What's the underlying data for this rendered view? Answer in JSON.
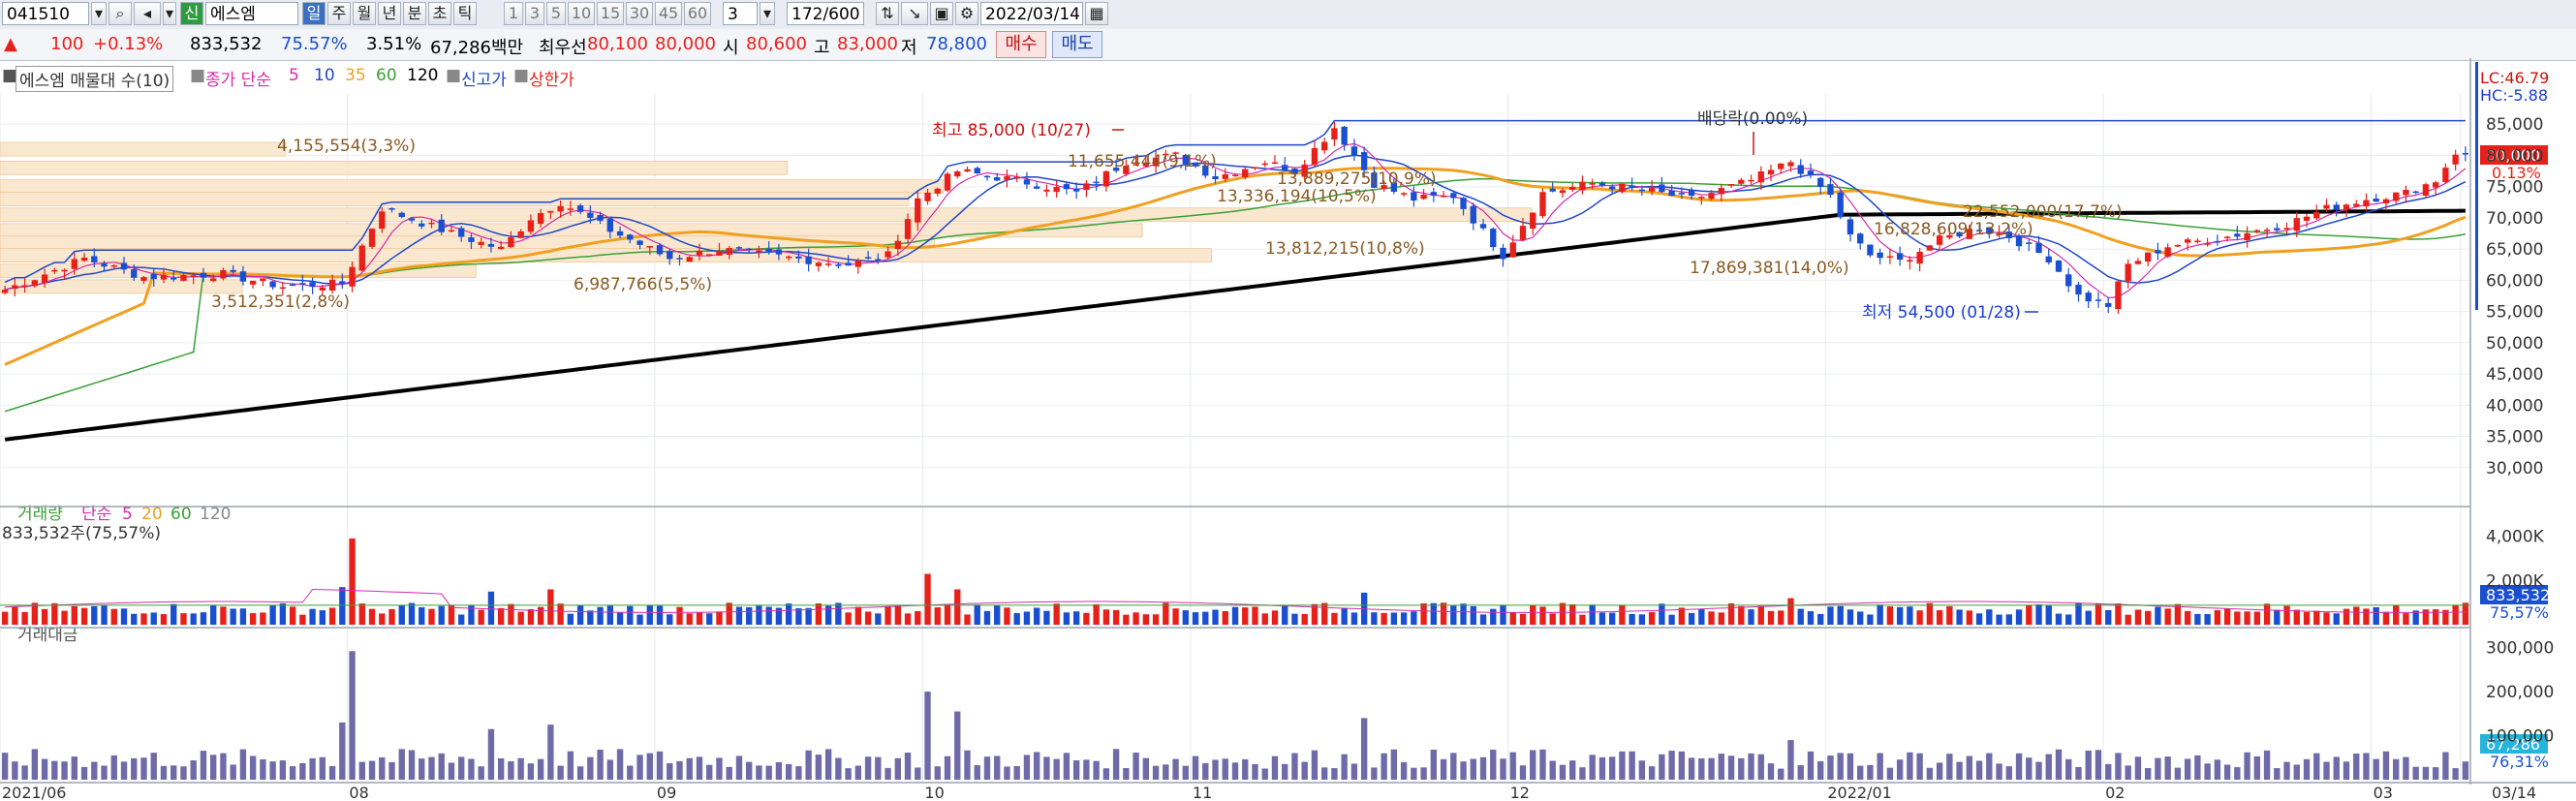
{
  "toolbar": {
    "code": "041510",
    "badge": "신",
    "name": "에스엠",
    "periods": [
      "일",
      "주",
      "월",
      "년",
      "분",
      "초",
      "틱"
    ],
    "counts": [
      "1",
      "3",
      "5",
      "10",
      "15",
      "30",
      "45",
      "60"
    ],
    "count_sel": "3",
    "range": "172/600",
    "date": "2022/03/14"
  },
  "quote": {
    "price": "100",
    "change": "+0.13%",
    "volume": "833,532",
    "vol_ratio": "75.57%",
    "turnover": "3.51%",
    "amount": "67,286백만",
    "best_label": "최우선",
    "best_ask": "80,100",
    "best_bid": "80,000",
    "open_label": "시",
    "open": "80,600",
    "high_label": "고",
    "high": "83,000",
    "low_label": "저",
    "low": "78,800",
    "buy": "매수",
    "sell": "매도"
  },
  "legend": {
    "profile": "에스엠 매물대 수(10)",
    "close_ma": "종가 단순",
    "ma": [
      "5",
      "10",
      "35",
      "60",
      "120"
    ],
    "new_high": "신고가",
    "limit_up": "상한가"
  },
  "colors": {
    "up": "#e8201a",
    "down": "#1a4fd1",
    "ma5": "#d42ba9",
    "ma10": "#2047c8",
    "ma35": "#f0a020",
    "ma60": "#3aa036",
    "ma120": "#000000",
    "amount_bar": "#6f6aa8",
    "profile": "#f9e7cf"
  },
  "chart_data": [
    {
      "type": "candlestick",
      "title": "",
      "x_ticks": [
        "2021/06",
        "08",
        "09",
        "10",
        "11",
        "12",
        "2022/01",
        "02",
        "03",
        "03/14"
      ],
      "ylim": [
        25000,
        90000
      ],
      "y_ticks": [
        "30,000",
        "35,000",
        "40,000",
        "45,000",
        "50,000",
        "55,000",
        "60,000",
        "65,000",
        "70,000",
        "75,000",
        "80,000",
        "85,000"
      ],
      "anchors": [
        [
          0,
          58500
        ],
        [
          8,
          63500
        ],
        [
          14,
          60500
        ],
        [
          22,
          61000
        ],
        [
          28,
          59000
        ],
        [
          34,
          59500
        ],
        [
          38,
          71500
        ],
        [
          45,
          67500
        ],
        [
          50,
          65000
        ],
        [
          53,
          70000
        ],
        [
          56,
          72500
        ],
        [
          61,
          68000
        ],
        [
          67,
          63500
        ],
        [
          72,
          65000
        ],
        [
          78,
          63800
        ],
        [
          85,
          62500
        ],
        [
          89,
          64000
        ],
        [
          92,
          73000
        ],
        [
          96,
          77500
        ],
        [
          102,
          76000
        ],
        [
          108,
          74000
        ],
        [
          113,
          79000
        ],
        [
          118,
          80000
        ],
        [
          122,
          76500
        ],
        [
          127,
          79000
        ],
        [
          130,
          77500
        ],
        [
          134,
          84500
        ],
        [
          138,
          75500
        ],
        [
          142,
          73000
        ],
        [
          146,
          73500
        ],
        [
          151,
          64000
        ],
        [
          155,
          74000
        ],
        [
          160,
          75500
        ],
        [
          165,
          74500
        ],
        [
          170,
          73000
        ],
        [
          176,
          76000
        ],
        [
          180,
          79000
        ],
        [
          184,
          73500
        ],
        [
          186,
          67000
        ],
        [
          188,
          64000
        ],
        [
          191,
          63000
        ],
        [
          195,
          66500
        ],
        [
          199,
          68500
        ],
        [
          202,
          67000
        ],
        [
          206,
          63500
        ],
        [
          209,
          57500
        ],
        [
          212,
          56000
        ],
        [
          214,
          62500
        ],
        [
          218,
          65500
        ],
        [
          224,
          67000
        ],
        [
          230,
          69000
        ],
        [
          234,
          71500
        ],
        [
          238,
          73000
        ],
        [
          242,
          74000
        ],
        [
          245,
          76000
        ],
        [
          247,
          80500
        ],
        [
          248,
          80000
        ]
      ],
      "annotations": {
        "high": "최고 85,000 (10/27)",
        "low": "최저 54,500 (01/28)",
        "dividend": "배당락(0.00%)",
        "profile_labels": [
          "4,155,554(3,3%)",
          "3,512,351(2,8%)",
          "6,987,766(5,5%)",
          "13,336,194(10,5%)",
          "13,812,215(10,8%)",
          "17,869,381(14,0%)",
          "16,828,609(13,2%)",
          "11,655,444(9,1%)",
          "13,889,275(10,9%)",
          "22,552,000(17,7%)"
        ]
      },
      "profile_levels": [
        {
          "price": 81000,
          "share": 3.3
        },
        {
          "price": 78000,
          "share": 9.1
        },
        {
          "price": 75000,
          "share": 10.9
        },
        {
          "price": 73000,
          "share": 10.5
        },
        {
          "price": 70500,
          "share": 17.7
        },
        {
          "price": 68000,
          "share": 13.2
        },
        {
          "price": 66000,
          "share": 10.8
        },
        {
          "price": 64000,
          "share": 14.0
        },
        {
          "price": 61500,
          "share": 5.5
        },
        {
          "price": 59000,
          "share": 2.8
        }
      ],
      "last_price": "80,000",
      "last_change": "0.13%",
      "lc_hc": [
        "LC:46.79",
        "HC:-5.88"
      ]
    },
    {
      "type": "bar",
      "title": "",
      "legend_name": "거래량",
      "legend_ma": "단순",
      "legend_periods": [
        "5",
        "20",
        "60",
        "120"
      ],
      "current": "833,532주(75,57%)",
      "ylim": [
        0,
        4600000
      ],
      "y_ticks": [
        "2,000K",
        "4,000K"
      ],
      "last_value": "833,532",
      "last_ratio": "75,57%"
    },
    {
      "type": "bar",
      "title": "",
      "legend_name": "거래대금",
      "ylim": [
        0,
        330000
      ],
      "y_ticks": [
        "100,000",
        "200,000",
        "300,000"
      ],
      "last_value": "67,286",
      "last_ratio": "76,31%"
    }
  ]
}
